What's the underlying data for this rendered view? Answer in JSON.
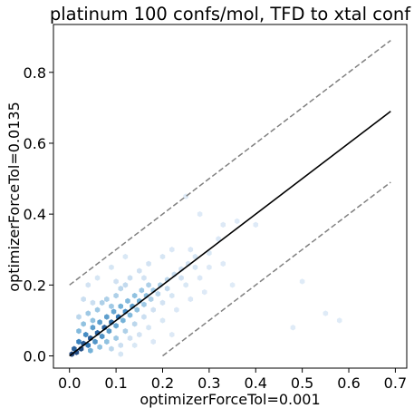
{
  "chart_data": {
    "type": "scatter",
    "subtype": "hexbin-density",
    "title": "platinum 100 confs/mol, TFD to xtal conf",
    "xlabel": "optimizerForceTol=0.001",
    "ylabel": "optimizerForceTol=0.0135",
    "xlim": [
      -0.0345,
      0.7245
    ],
    "ylim": [
      -0.0345,
      0.935
    ],
    "xticks": [
      "0.0",
      "0.1",
      "0.2",
      "0.3",
      "0.4",
      "0.5",
      "0.6",
      "0.7"
    ],
    "yticks": [
      "0.0",
      "0.2",
      "0.4",
      "0.6",
      "0.8"
    ],
    "grid": false,
    "colormap": [
      "#f7fbff",
      "#c6dbef",
      "#6baed6",
      "#2171b5",
      "#08306b"
    ],
    "reference_lines": [
      {
        "kind": "identity",
        "color": "#000000",
        "style": "solid",
        "x": [
          0.0,
          0.69
        ],
        "y": [
          0.0,
          0.69
        ]
      },
      {
        "kind": "upper-bound",
        "color": "#808080",
        "style": "dashed",
        "x": [
          0.0,
          0.69
        ],
        "y": [
          0.2,
          0.89
        ]
      },
      {
        "kind": "lower-bound",
        "color": "#808080",
        "style": "dashed",
        "x": [
          0.2,
          0.69
        ],
        "y": [
          0.0,
          0.49
        ]
      }
    ],
    "density_cells": [
      {
        "x": 0.005,
        "y": 0.005,
        "d": 1.0
      },
      {
        "x": 0.015,
        "y": 0.01,
        "d": 0.95
      },
      {
        "x": 0.01,
        "y": 0.02,
        "d": 0.85
      },
      {
        "x": 0.025,
        "y": 0.02,
        "d": 0.95
      },
      {
        "x": 0.03,
        "y": 0.035,
        "d": 0.9
      },
      {
        "x": 0.02,
        "y": 0.04,
        "d": 0.7
      },
      {
        "x": 0.04,
        "y": 0.03,
        "d": 0.75
      },
      {
        "x": 0.045,
        "y": 0.05,
        "d": 0.9
      },
      {
        "x": 0.035,
        "y": 0.06,
        "d": 0.65
      },
      {
        "x": 0.055,
        "y": 0.04,
        "d": 0.6
      },
      {
        "x": 0.06,
        "y": 0.065,
        "d": 0.85
      },
      {
        "x": 0.05,
        "y": 0.08,
        "d": 0.55
      },
      {
        "x": 0.07,
        "y": 0.055,
        "d": 0.6
      },
      {
        "x": 0.075,
        "y": 0.08,
        "d": 0.85
      },
      {
        "x": 0.065,
        "y": 0.095,
        "d": 0.55
      },
      {
        "x": 0.085,
        "y": 0.07,
        "d": 0.55
      },
      {
        "x": 0.09,
        "y": 0.095,
        "d": 0.8
      },
      {
        "x": 0.08,
        "y": 0.11,
        "d": 0.55
      },
      {
        "x": 0.1,
        "y": 0.085,
        "d": 0.5
      },
      {
        "x": 0.105,
        "y": 0.11,
        "d": 0.75
      },
      {
        "x": 0.095,
        "y": 0.125,
        "d": 0.5
      },
      {
        "x": 0.115,
        "y": 0.1,
        "d": 0.45
      },
      {
        "x": 0.12,
        "y": 0.125,
        "d": 0.65
      },
      {
        "x": 0.11,
        "y": 0.14,
        "d": 0.45
      },
      {
        "x": 0.13,
        "y": 0.115,
        "d": 0.4
      },
      {
        "x": 0.135,
        "y": 0.14,
        "d": 0.55
      },
      {
        "x": 0.125,
        "y": 0.155,
        "d": 0.4
      },
      {
        "x": 0.145,
        "y": 0.13,
        "d": 0.35
      },
      {
        "x": 0.15,
        "y": 0.155,
        "d": 0.45
      },
      {
        "x": 0.14,
        "y": 0.17,
        "d": 0.35
      },
      {
        "x": 0.16,
        "y": 0.145,
        "d": 0.3
      },
      {
        "x": 0.165,
        "y": 0.17,
        "d": 0.35
      },
      {
        "x": 0.155,
        "y": 0.185,
        "d": 0.3
      },
      {
        "x": 0.175,
        "y": 0.16,
        "d": 0.25
      },
      {
        "x": 0.18,
        "y": 0.185,
        "d": 0.3
      },
      {
        "x": 0.17,
        "y": 0.2,
        "d": 0.25
      },
      {
        "x": 0.19,
        "y": 0.175,
        "d": 0.2
      },
      {
        "x": 0.195,
        "y": 0.2,
        "d": 0.25
      },
      {
        "x": 0.21,
        "y": 0.19,
        "d": 0.18
      },
      {
        "x": 0.21,
        "y": 0.215,
        "d": 0.2
      },
      {
        "x": 0.225,
        "y": 0.23,
        "d": 0.15
      },
      {
        "x": 0.24,
        "y": 0.22,
        "d": 0.12
      },
      {
        "x": 0.24,
        "y": 0.245,
        "d": 0.12
      },
      {
        "x": 0.255,
        "y": 0.26,
        "d": 0.1
      },
      {
        "x": 0.27,
        "y": 0.25,
        "d": 0.08
      },
      {
        "x": 0.27,
        "y": 0.28,
        "d": 0.08
      },
      {
        "x": 0.3,
        "y": 0.29,
        "d": 0.06
      },
      {
        "x": 0.32,
        "y": 0.33,
        "d": 0.05
      },
      {
        "x": 0.03,
        "y": 0.09,
        "d": 0.35
      },
      {
        "x": 0.04,
        "y": 0.12,
        "d": 0.3
      },
      {
        "x": 0.05,
        "y": 0.1,
        "d": 0.35
      },
      {
        "x": 0.06,
        "y": 0.13,
        "d": 0.3
      },
      {
        "x": 0.07,
        "y": 0.15,
        "d": 0.25
      },
      {
        "x": 0.08,
        "y": 0.16,
        "d": 0.25
      },
      {
        "x": 0.09,
        "y": 0.14,
        "d": 0.3
      },
      {
        "x": 0.1,
        "y": 0.17,
        "d": 0.25
      },
      {
        "x": 0.11,
        "y": 0.19,
        "d": 0.2
      },
      {
        "x": 0.12,
        "y": 0.2,
        "d": 0.18
      },
      {
        "x": 0.13,
        "y": 0.22,
        "d": 0.15
      },
      {
        "x": 0.15,
        "y": 0.24,
        "d": 0.12
      },
      {
        "x": 0.17,
        "y": 0.26,
        "d": 0.1
      },
      {
        "x": 0.2,
        "y": 0.28,
        "d": 0.08
      },
      {
        "x": 0.05,
        "y": 0.15,
        "d": 0.15
      },
      {
        "x": 0.02,
        "y": 0.07,
        "d": 0.4
      },
      {
        "x": 0.02,
        "y": 0.11,
        "d": 0.2
      },
      {
        "x": 0.03,
        "y": 0.16,
        "d": 0.15
      },
      {
        "x": 0.04,
        "y": 0.2,
        "d": 0.1
      },
      {
        "x": 0.06,
        "y": 0.22,
        "d": 0.08
      },
      {
        "x": 0.09,
        "y": 0.25,
        "d": 0.08
      },
      {
        "x": 0.12,
        "y": 0.28,
        "d": 0.06
      },
      {
        "x": 0.1,
        "y": 0.21,
        "d": 0.12
      },
      {
        "x": 0.16,
        "y": 0.22,
        "d": 0.1
      },
      {
        "x": 0.045,
        "y": 0.015,
        "d": 0.45
      },
      {
        "x": 0.065,
        "y": 0.025,
        "d": 0.35
      },
      {
        "x": 0.08,
        "y": 0.04,
        "d": 0.35
      },
      {
        "x": 0.1,
        "y": 0.05,
        "d": 0.3
      },
      {
        "x": 0.12,
        "y": 0.07,
        "d": 0.25
      },
      {
        "x": 0.14,
        "y": 0.09,
        "d": 0.2
      },
      {
        "x": 0.16,
        "y": 0.11,
        "d": 0.15
      },
      {
        "x": 0.18,
        "y": 0.13,
        "d": 0.12
      },
      {
        "x": 0.2,
        "y": 0.15,
        "d": 0.1
      },
      {
        "x": 0.22,
        "y": 0.17,
        "d": 0.08
      },
      {
        "x": 0.25,
        "y": 0.2,
        "d": 0.06
      },
      {
        "x": 0.09,
        "y": 0.02,
        "d": 0.2
      },
      {
        "x": 0.11,
        "y": 0.03,
        "d": 0.15
      },
      {
        "x": 0.13,
        "y": 0.05,
        "d": 0.12
      },
      {
        "x": 0.15,
        "y": 0.06,
        "d": 0.1
      },
      {
        "x": 0.17,
        "y": 0.08,
        "d": 0.08
      },
      {
        "x": 0.2,
        "y": 0.1,
        "d": 0.06
      },
      {
        "x": 0.14,
        "y": 0.03,
        "d": 0.06
      },
      {
        "x": 0.23,
        "y": 0.13,
        "d": 0.05
      },
      {
        "x": 0.26,
        "y": 0.16,
        "d": 0.05
      },
      {
        "x": 0.28,
        "y": 0.22,
        "d": 0.05
      },
      {
        "x": 0.3,
        "y": 0.25,
        "d": 0.04
      },
      {
        "x": 0.26,
        "y": 0.3,
        "d": 0.05
      },
      {
        "x": 0.22,
        "y": 0.3,
        "d": 0.05
      },
      {
        "x": 0.33,
        "y": 0.37,
        "d": 0.04
      },
      {
        "x": 0.36,
        "y": 0.38,
        "d": 0.03
      },
      {
        "x": 0.4,
        "y": 0.37,
        "d": 0.03
      },
      {
        "x": 0.28,
        "y": 0.4,
        "d": 0.03
      },
      {
        "x": 0.25,
        "y": 0.45,
        "d": 0.02
      },
      {
        "x": 0.29,
        "y": 0.18,
        "d": 0.03
      },
      {
        "x": 0.33,
        "y": 0.26,
        "d": 0.03
      },
      {
        "x": 0.35,
        "y": 0.2,
        "d": 0.02
      },
      {
        "x": 0.48,
        "y": 0.08,
        "d": 0.02
      },
      {
        "x": 0.55,
        "y": 0.12,
        "d": 0.02
      },
      {
        "x": 0.58,
        "y": 0.1,
        "d": 0.02
      },
      {
        "x": 0.5,
        "y": 0.21,
        "d": 0.02
      },
      {
        "x": 0.11,
        "y": 0.005,
        "d": 0.08
      },
      {
        "x": 0.18,
        "y": 0.04,
        "d": 0.05
      },
      {
        "x": 0.22,
        "y": 0.06,
        "d": 0.04
      }
    ]
  }
}
